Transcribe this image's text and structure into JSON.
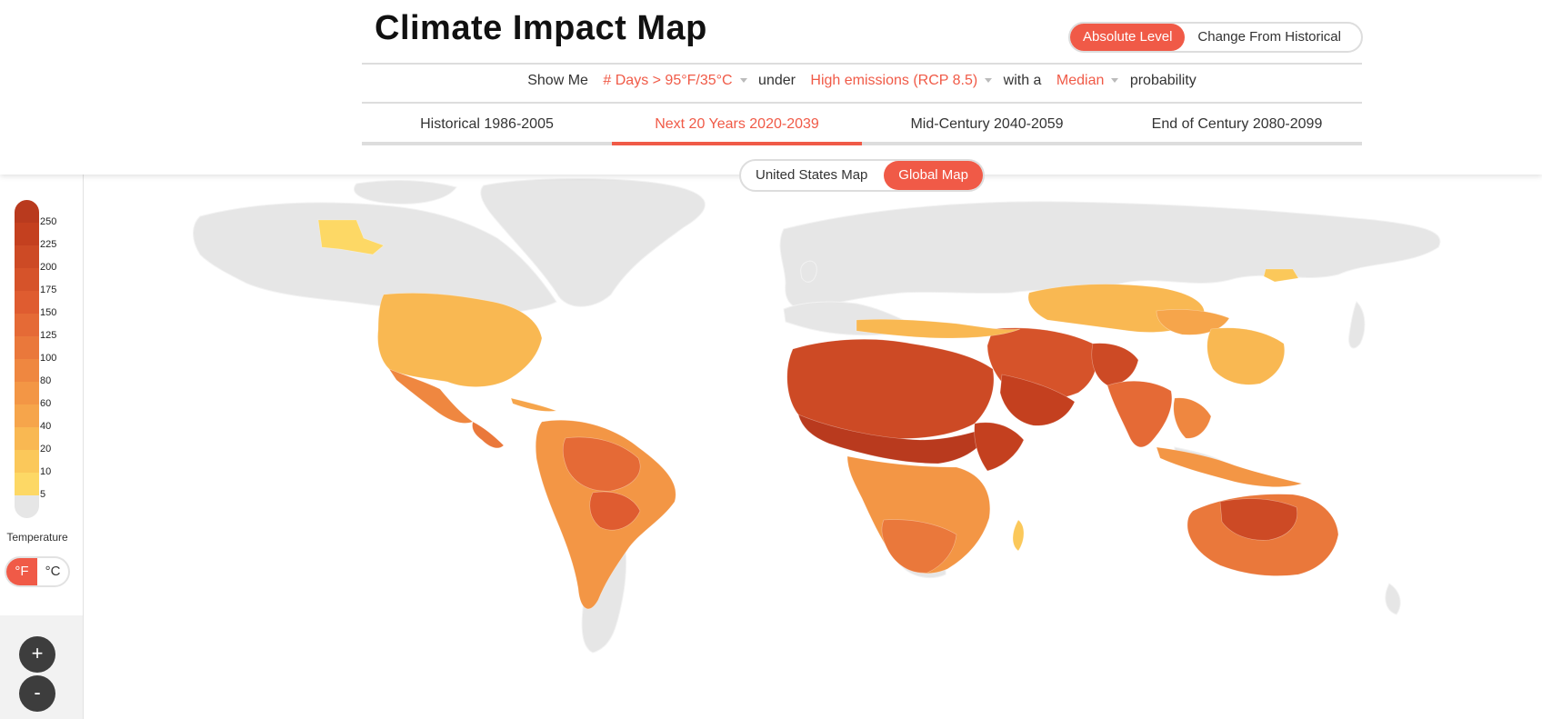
{
  "header": {
    "title": "Climate Impact Map",
    "level_options": [
      "Absolute Level",
      "Change From Historical"
    ],
    "level_selected": "Absolute Level"
  },
  "showme": {
    "prefix": "Show Me",
    "metric": "# Days > 95°F/35°C",
    "under": "under",
    "scenario": "High emissions (RCP 8.5)",
    "with_a": "with a",
    "probability": "Median",
    "suffix": "probability"
  },
  "tabs": [
    {
      "label": "Historical 1986-2005",
      "active": false
    },
    {
      "label": "Next 20 Years 2020-2039",
      "active": true
    },
    {
      "label": "Mid-Century 2040-2059",
      "active": false
    },
    {
      "label": "End of Century 2080-2099",
      "active": false
    }
  ],
  "map_toggle": {
    "options": [
      "United States Map",
      "Global Map"
    ],
    "selected": "Global Map"
  },
  "legend": {
    "labels": [
      "250",
      "225",
      "200",
      "175",
      "150",
      "125",
      "100",
      "80",
      "60",
      "40",
      "20",
      "10",
      "5"
    ],
    "colors": [
      "#b93a1e",
      "#c4401f",
      "#cd4a25",
      "#d6532a",
      "#df5c30",
      "#e56a36",
      "#ea783b",
      "#ef8740",
      "#f39645",
      "#f6a54b",
      "#f9b852",
      "#fbc85a",
      "#fdd865",
      "#e6e6e6"
    ],
    "title": "Temperature",
    "units": [
      "°F",
      "°C"
    ],
    "unit_selected": "°F"
  },
  "zoom": {
    "in_label": "+",
    "out_label": "-"
  },
  "colors": {
    "accent": "#f05a47",
    "land_no_data": "#e6e6e6"
  }
}
